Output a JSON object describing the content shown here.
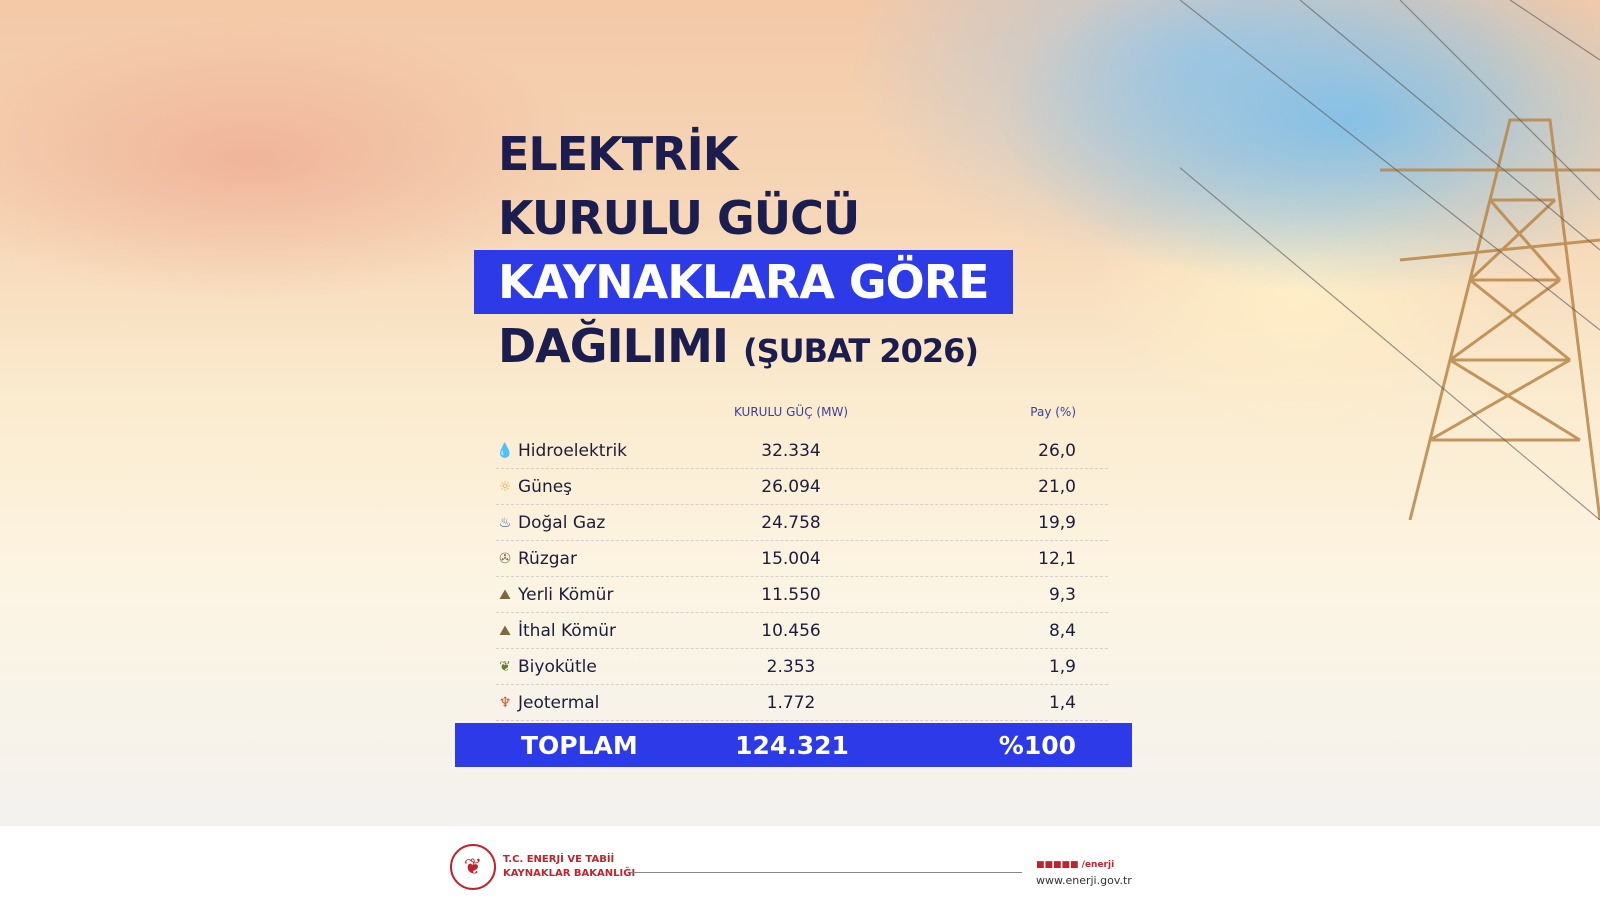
{
  "title": {
    "line1": "ELEKTRİK",
    "line2": "KURULU GÜCÜ",
    "line3": "KAYNAKLARA GÖRE",
    "line4": "DAĞILIMI",
    "period": "(ŞUBAT 2026)"
  },
  "table": {
    "col_capacity": "KURULU GÜÇ (MW)",
    "col_share": "Pay (%)",
    "rows": [
      {
        "name": "Hidroelektrik",
        "mw": "32.334",
        "share": "26,0",
        "icon": "water-drop-icon"
      },
      {
        "name": "Güneş",
        "mw": "26.094",
        "share": "21,0",
        "icon": "sun-icon"
      },
      {
        "name": "Doğal Gaz",
        "mw": "24.758",
        "share": "19,9",
        "icon": "gas-flame-icon"
      },
      {
        "name": "Rüzgar",
        "mw": "15.004",
        "share": "12,1",
        "icon": "wind-turbine-icon"
      },
      {
        "name": "Yerli Kömür",
        "mw": "11.550",
        "share": "9,3",
        "icon": "coal-icon"
      },
      {
        "name": "İthal Kömür",
        "mw": "10.456",
        "share": "8,4",
        "icon": "coal-icon"
      },
      {
        "name": "Biyokütle",
        "mw": "2.353",
        "share": "1,9",
        "icon": "biomass-icon"
      },
      {
        "name": "Jeotermal",
        "mw": "1.772",
        "share": "1,4",
        "icon": "geothermal-icon"
      }
    ],
    "total": {
      "label": "TOPLAM",
      "mw": "124.321",
      "share": "%100"
    }
  },
  "footer": {
    "ministry_line1": "T.C. ENERJİ VE TABİİ",
    "ministry_line2": "KAYNAKLAR BAKANLIĞI",
    "social": "/enerji",
    "website": "www.enerji.gov.tr"
  },
  "colors": {
    "accent": "#2d3ae8",
    "title": "#1b1d4f",
    "brand_red": "#c0232f"
  }
}
